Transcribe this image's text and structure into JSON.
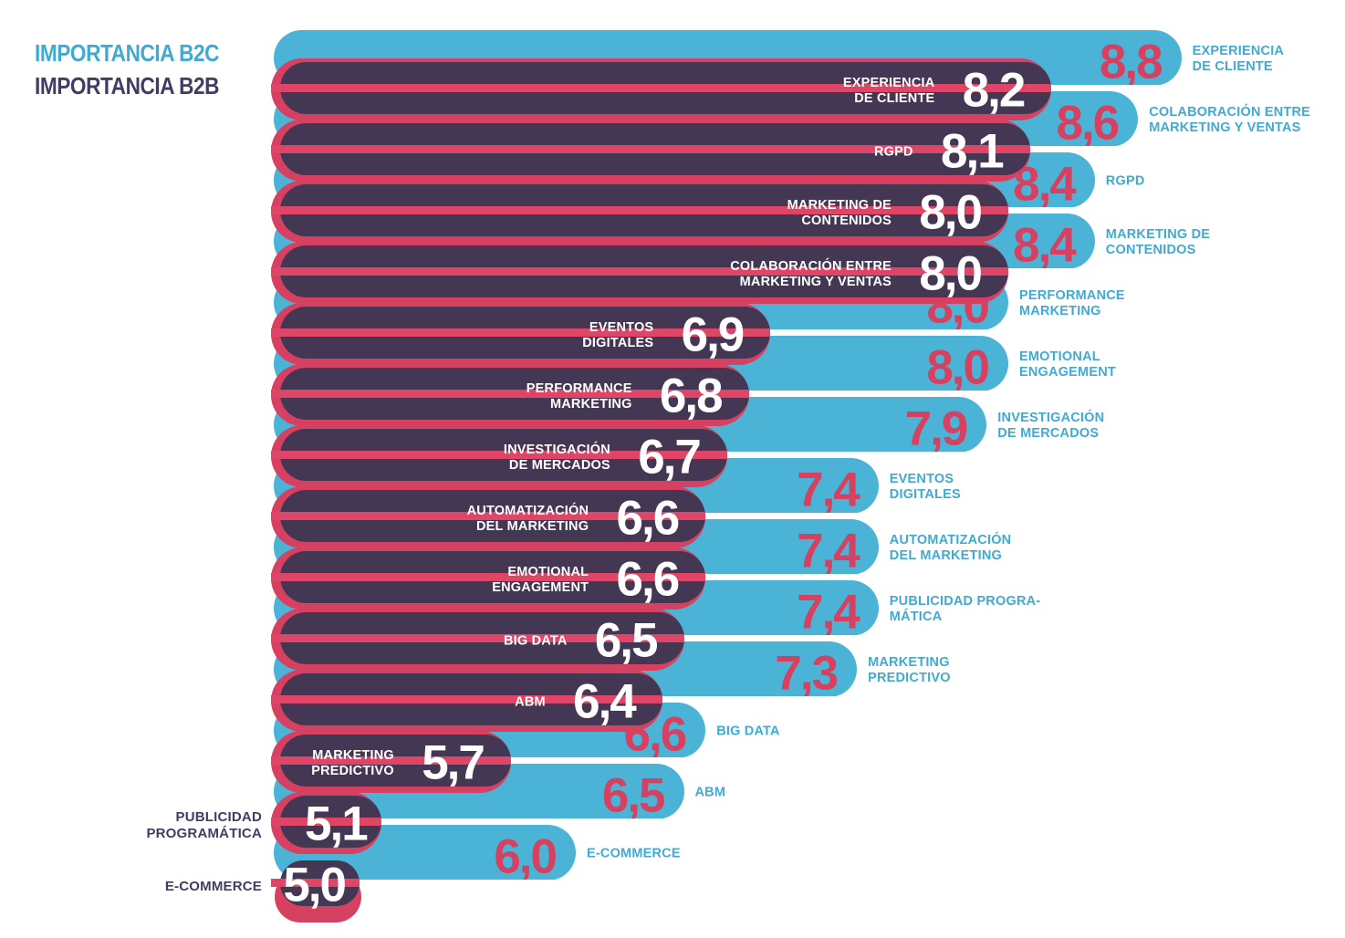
{
  "colors": {
    "blue": "#4ab3d6",
    "dark": "#443753",
    "red": "#d64161",
    "stripe": "#df4566",
    "text_blue": "#41aad2",
    "navy": "#433c62",
    "white": "#ffffff"
  },
  "legend": {
    "b2c": "IMPORTANCIA B2C",
    "b2b": "IMPORTANCIA B2B"
  },
  "chart_data": {
    "type": "bar",
    "orientation": "horizontal",
    "value_format": "decimal-comma",
    "value_range": [
      5.0,
      8.8
    ],
    "grid": false,
    "legend_position": "top-left",
    "series": [
      {
        "name": "IMPORTANCIA B2C",
        "color_key": "blue"
      },
      {
        "name": "IMPORTANCIA B2B",
        "color_key": "dark"
      }
    ],
    "rows": [
      {
        "series": "B2C",
        "value": 8.8,
        "display": "8,8",
        "label": "EXPERIENCIA DE CLIENTE",
        "lines": [
          "EXPERIENCIA",
          "DE CLIENTE"
        ],
        "label_placement": "right"
      },
      {
        "series": "B2B",
        "value": 8.2,
        "display": "8,2",
        "label": "EXPERIENCIA DE CLIENTE",
        "lines": [
          "EXPERIENCIA",
          "DE CLIENTE"
        ],
        "label_placement": "inside"
      },
      {
        "series": "B2C",
        "value": 8.6,
        "display": "8,6",
        "label": "COLABORACIÓN ENTRE MARKETING Y VENTAS",
        "lines": [
          "COLABORACIÓN ENTRE",
          "MARKETING Y VENTAS"
        ],
        "label_placement": "right"
      },
      {
        "series": "B2B",
        "value": 8.1,
        "display": "8,1",
        "label": "RGPD",
        "lines": [
          "RGPD"
        ],
        "label_placement": "inside"
      },
      {
        "series": "B2C",
        "value": 8.4,
        "display": "8,4",
        "label": "RGPD",
        "lines": [
          "RGPD"
        ],
        "label_placement": "right"
      },
      {
        "series": "B2B",
        "value": 8.0,
        "display": "8,0",
        "label": "MARKETING DE CONTENIDOS",
        "lines": [
          "MARKETING DE",
          "CONTENIDOS"
        ],
        "label_placement": "inside"
      },
      {
        "series": "B2C",
        "value": 8.4,
        "display": "8,4",
        "label": "MARKETING DE CONTENIDOS",
        "lines": [
          "MARKETING DE",
          "CONTENIDOS"
        ],
        "label_placement": "right"
      },
      {
        "series": "B2B",
        "value": 8.0,
        "display": "8,0",
        "label": "COLABORACIÓN ENTRE MARKETING Y VENTAS",
        "lines": [
          "COLABORACIÓN ENTRE",
          "MARKETING Y VENTAS"
        ],
        "label_placement": "inside"
      },
      {
        "series": "B2C",
        "value": 8.0,
        "display": "8,0",
        "label": "PERFORMANCE MARKETING",
        "lines": [
          "PERFORMANCE",
          "MARKETING"
        ],
        "label_placement": "right"
      },
      {
        "series": "B2B",
        "value": 6.9,
        "display": "6,9",
        "label": "EVENTOS DIGITALES",
        "lines": [
          "EVENTOS",
          "DIGITALES"
        ],
        "label_placement": "inside"
      },
      {
        "series": "B2C",
        "value": 8.0,
        "display": "8,0",
        "label": "EMOTIONAL ENGAGEMENT",
        "lines": [
          "EMOTIONAL",
          "ENGAGEMENT"
        ],
        "label_placement": "right"
      },
      {
        "series": "B2B",
        "value": 6.8,
        "display": "6,8",
        "label": "PERFORMANCE MARKETING",
        "lines": [
          "PERFORMANCE",
          "MARKETING"
        ],
        "label_placement": "inside"
      },
      {
        "series": "B2C",
        "value": 7.9,
        "display": "7,9",
        "label": "INVESTIGACIÓN DE MERCADOS",
        "lines": [
          "INVESTIGACIÓN",
          "DE MERCADOS"
        ],
        "label_placement": "right"
      },
      {
        "series": "B2B",
        "value": 6.7,
        "display": "6,7",
        "label": "INVESTIGACIÓN DE MERCADOS",
        "lines": [
          "INVESTIGACIÓN",
          "DE MERCADOS"
        ],
        "label_placement": "inside"
      },
      {
        "series": "B2C",
        "value": 7.4,
        "display": "7,4",
        "label": "EVENTOS DIGITALES",
        "lines": [
          "EVENTOS",
          "DIGITALES"
        ],
        "label_placement": "right"
      },
      {
        "series": "B2B",
        "value": 6.6,
        "display": "6,6",
        "label": "AUTOMATIZACIÓN DEL MARKETING",
        "lines": [
          "AUTOMATIZACIÓN",
          "DEL MARKETING"
        ],
        "label_placement": "inside"
      },
      {
        "series": "B2C",
        "value": 7.4,
        "display": "7,4",
        "label": "AUTOMATIZACIÓN DEL MARKETING",
        "lines": [
          "AUTOMATIZACIÓN",
          "DEL MARKETING"
        ],
        "label_placement": "right"
      },
      {
        "series": "B2B",
        "value": 6.6,
        "display": "6,6",
        "label": "EMOTIONAL ENGAGEMENT",
        "lines": [
          "EMOTIONAL",
          "ENGAGEMENT"
        ],
        "label_placement": "inside"
      },
      {
        "series": "B2C",
        "value": 7.4,
        "display": "7,4",
        "label": "PUBLICIDAD PROGRAMÁTICA",
        "lines": [
          "PUBLICIDAD PROGRA-",
          "MÁTICA"
        ],
        "label_placement": "right"
      },
      {
        "series": "B2B",
        "value": 6.5,
        "display": "6,5",
        "label": "BIG DATA",
        "lines": [
          "BIG DATA"
        ],
        "label_placement": "inside"
      },
      {
        "series": "B2C",
        "value": 7.3,
        "display": "7,3",
        "label": "MARKETING PREDICTIVO",
        "lines": [
          "MARKETING",
          "PREDICTIVO"
        ],
        "label_placement": "right"
      },
      {
        "series": "B2B",
        "value": 6.4,
        "display": "6,4",
        "label": "ABM",
        "lines": [
          "ABM"
        ],
        "label_placement": "inside"
      },
      {
        "series": "B2C",
        "value": 6.6,
        "display": "6,6",
        "label": "BIG DATA",
        "lines": [
          "BIG DATA"
        ],
        "label_placement": "right"
      },
      {
        "series": "B2B",
        "value": 5.7,
        "display": "5,7",
        "label": "MARKETING PREDICTIVO",
        "lines": [
          "MARKETING",
          "PREDICTIVO"
        ],
        "label_placement": "inside"
      },
      {
        "series": "B2C",
        "value": 6.5,
        "display": "6,5",
        "label": "ABM",
        "lines": [
          "ABM"
        ],
        "label_placement": "right"
      },
      {
        "series": "B2B",
        "value": 5.1,
        "display": "5,1",
        "label": "PUBLICIDAD PROGRAMÁTICA",
        "lines": [
          "PUBLICIDAD",
          "PROGRAMÁTICA"
        ],
        "label_placement": "left"
      },
      {
        "series": "B2C",
        "value": 6.0,
        "display": "6,0",
        "label": "E-COMMERCE",
        "lines": [
          "E-COMMERCE"
        ],
        "label_placement": "right"
      },
      {
        "series": "B2B",
        "value": 5.0,
        "display": "5,0",
        "label": "E-COMMERCE",
        "lines": [
          "E-COMMERCE"
        ],
        "label_placement": "left"
      }
    ]
  }
}
